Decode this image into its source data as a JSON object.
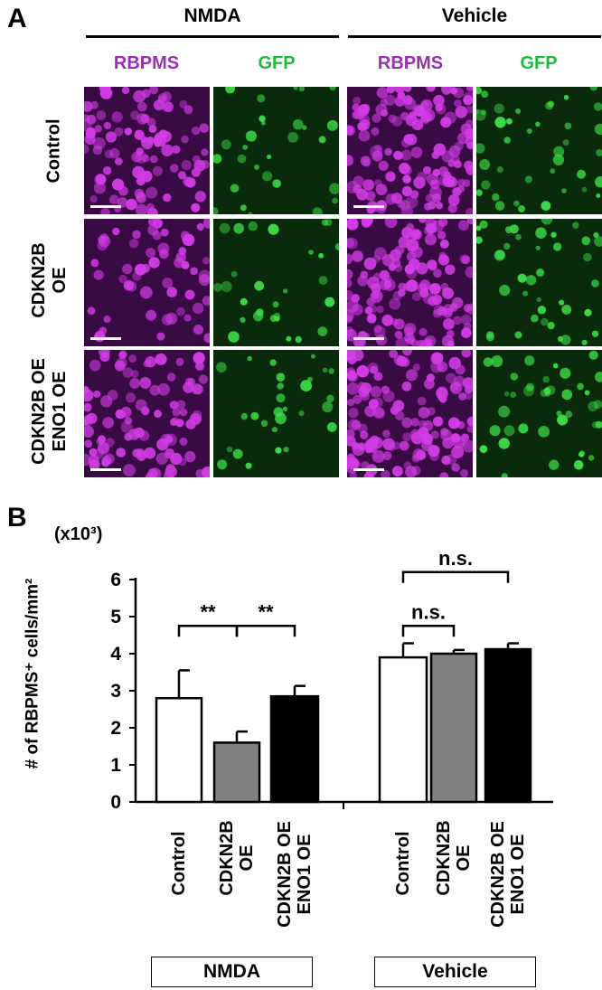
{
  "panel_a": {
    "letter": "A",
    "groups": [
      "NMDA",
      "Vehicle"
    ],
    "columns": [
      "RBPMS",
      "GFP",
      "RBPMS",
      "GFP"
    ],
    "rows": [
      {
        "line1": "Control",
        "line2": ""
      },
      {
        "line1": "CDKN2B",
        "line2": "OE"
      },
      {
        "line1": "CDKN2B OE",
        "line2": "ENO1 OE"
      }
    ],
    "colors": {
      "rbpms": "#9b2fb4",
      "gfp": "#1dbb3c"
    }
  },
  "panel_b": {
    "letter": "B",
    "multiplier": "(x10³)",
    "ylabel": "# of RBPMS⁺ cells/mm²",
    "group_boxes": [
      "NMDA",
      "Vehicle"
    ]
  },
  "chart_data": {
    "type": "bar",
    "ylabel": "# of RBPMS⁺ cells/mm²",
    "yunit": "(x10³)",
    "ylim": [
      0,
      6
    ],
    "yticks": [
      "0",
      "1",
      "2",
      "3",
      "4",
      "5",
      "6"
    ],
    "groups": [
      "NMDA",
      "Vehicle"
    ],
    "series": [
      {
        "name": "Control",
        "group": "NMDA",
        "value": 2.8,
        "error": 0.75,
        "color": "#ffffff"
      },
      {
        "name": "CDKN2B\nOE",
        "group": "NMDA",
        "value": 1.6,
        "error": 0.3,
        "color": "#808080"
      },
      {
        "name": "CDKN2B OE\nENO1 OE",
        "group": "NMDA",
        "value": 2.85,
        "error": 0.28,
        "color": "#000000"
      },
      {
        "name": "Control",
        "group": "Vehicle",
        "value": 3.9,
        "error": 0.38,
        "color": "#ffffff"
      },
      {
        "name": "CDKN2B\nOE",
        "group": "Vehicle",
        "value": 4.0,
        "error": 0.1,
        "color": "#808080"
      },
      {
        "name": "CDKN2B OE\nENO1 OE",
        "group": "Vehicle",
        "value": 4.12,
        "error": 0.16,
        "color": "#000000"
      }
    ],
    "annotations": [
      {
        "text": "**",
        "from": 0,
        "to": 1,
        "y": 4.75
      },
      {
        "text": "**",
        "from": 1,
        "to": 2,
        "y": 4.75
      },
      {
        "text": "n.s.",
        "from": 3,
        "to": 4,
        "y": 4.75
      },
      {
        "text": "n.s.",
        "from": 3,
        "to": 5,
        "y": 6.2
      }
    ]
  }
}
